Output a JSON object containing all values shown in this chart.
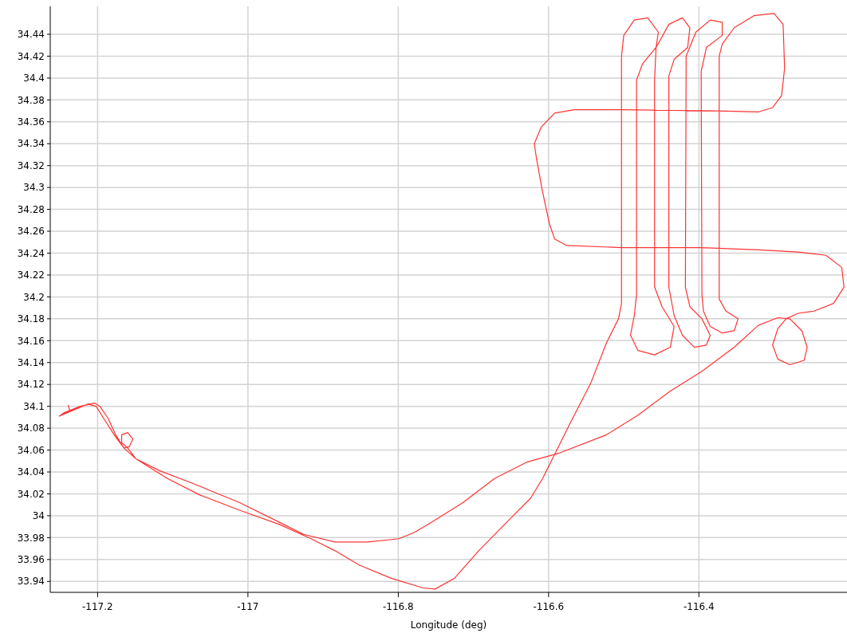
{
  "chart_data": {
    "type": "line",
    "xlabel": "Longitude (deg)",
    "grid": true,
    "xlim": [
      -117.263,
      -116.203
    ],
    "ylim": [
      33.93,
      34.4655
    ],
    "xticks": [
      -117.2,
      -117,
      -116.8,
      -116.6,
      -116.4
    ],
    "yticks": [
      33.94,
      33.96,
      33.98,
      34,
      34.02,
      34.04,
      34.06,
      34.08,
      34.1,
      34.12,
      34.14,
      34.16,
      34.18,
      34.2,
      34.22,
      34.24,
      34.26,
      34.28,
      34.3,
      34.32,
      34.34,
      34.36,
      34.38,
      34.4,
      34.42,
      34.44
    ],
    "series": [
      {
        "color": "#ff3333",
        "line_style": "solid",
        "x": [
          -117.239,
          -117.237,
          -117.249,
          -117.251,
          -117.245,
          -117.223,
          -117.204,
          -117.197,
          -117.186,
          -117.176,
          -117.165,
          -117.149,
          -117.117,
          -117.075,
          -117.011,
          -116.958,
          -116.926,
          -116.884,
          -116.841,
          -116.799,
          -116.778,
          -116.756,
          -116.714,
          -116.672,
          -116.629,
          -116.587,
          -116.523,
          -116.481,
          -116.438,
          -116.396,
          -116.353,
          -116.321,
          -116.295,
          -116.279,
          -116.263,
          -116.256,
          -116.26,
          -116.279,
          -116.295,
          -116.302,
          -116.295,
          -116.284,
          -116.268,
          -116.247,
          -116.221,
          -116.207,
          -116.21,
          -116.231,
          -116.268,
          -116.321,
          -116.396,
          -116.502,
          -116.576,
          -116.592,
          -116.599,
          -116.608,
          -116.616,
          -116.619,
          -116.61,
          -116.592,
          -116.566,
          -116.502,
          -116.374,
          -116.321,
          -116.302,
          -116.29,
          -116.286,
          -116.288,
          -116.3,
          -116.327,
          -116.353,
          -116.369,
          -116.373,
          -116.373,
          -116.364,
          -116.348,
          -116.353,
          -116.369,
          -116.385,
          -116.394,
          -116.396,
          -116.397,
          -116.39,
          -116.369,
          -116.369,
          -116.385,
          -116.404,
          -116.417,
          -116.418,
          -116.412,
          -116.396,
          -116.385,
          -116.39,
          -116.406,
          -116.422,
          -116.433,
          -116.44,
          -116.44,
          -116.433,
          -116.415,
          -116.412,
          -116.422,
          -116.44,
          -116.457,
          -116.459,
          -116.459,
          -116.449,
          -116.433,
          -116.438,
          -116.459,
          -116.481,
          -116.491,
          -116.486,
          -116.483,
          -116.483,
          -116.475,
          -116.457,
          -116.454,
          -116.468,
          -116.486,
          -116.5,
          -116.503,
          -116.503,
          -116.507,
          -116.523,
          -116.544,
          -116.571,
          -116.592,
          -116.608,
          -116.624,
          -116.65,
          -116.693,
          -116.725,
          -116.751,
          -116.767,
          -116.81,
          -116.852,
          -116.884,
          -116.916,
          -116.958,
          -117.011,
          -117.064,
          -117.107,
          -117.149,
          -117.16,
          -117.168,
          -117.168,
          -117.16,
          -117.153,
          -117.158,
          -117.165,
          -117.176,
          -117.192,
          -117.202,
          -117.213,
          -117.234,
          -117.251
        ],
        "values": [
          34.101,
          34.096,
          34.092,
          34.091,
          34.094,
          34.1,
          34.103,
          34.1,
          34.089,
          34.074,
          34.062,
          34.052,
          34.041,
          34.03,
          34.012,
          33.994,
          33.983,
          33.976,
          33.976,
          33.979,
          33.985,
          33.994,
          34.012,
          34.034,
          34.049,
          34.057,
          34.074,
          34.092,
          34.114,
          34.132,
          34.154,
          34.174,
          34.181,
          34.18,
          34.169,
          34.154,
          34.142,
          34.138,
          34.143,
          34.156,
          34.171,
          34.18,
          34.185,
          34.187,
          34.194,
          34.209,
          34.227,
          34.238,
          34.241,
          34.243,
          34.245,
          34.245,
          34.247,
          34.253,
          34.267,
          34.296,
          34.326,
          34.34,
          34.355,
          34.368,
          34.371,
          34.371,
          34.37,
          34.369,
          34.373,
          34.384,
          34.409,
          34.449,
          34.459,
          34.457,
          34.446,
          34.431,
          34.42,
          34.198,
          34.187,
          34.18,
          34.169,
          34.167,
          34.173,
          34.187,
          34.202,
          34.406,
          34.428,
          34.439,
          34.451,
          34.453,
          34.442,
          34.42,
          34.209,
          34.191,
          34.18,
          34.165,
          34.156,
          34.154,
          34.165,
          34.183,
          34.209,
          34.402,
          34.417,
          34.428,
          34.446,
          34.455,
          34.449,
          34.428,
          34.398,
          34.209,
          34.191,
          34.173,
          34.154,
          34.147,
          34.151,
          34.165,
          34.183,
          34.202,
          34.398,
          34.413,
          34.428,
          34.442,
          34.455,
          34.453,
          34.439,
          34.42,
          34.194,
          34.18,
          34.158,
          34.121,
          34.085,
          34.056,
          34.034,
          34.016,
          33.998,
          33.968,
          33.943,
          33.933,
          33.934,
          33.943,
          33.955,
          33.968,
          33.979,
          33.992,
          34.005,
          34.019,
          34.034,
          34.052,
          34.062,
          34.067,
          34.074,
          34.076,
          34.07,
          34.063,
          34.062,
          34.072,
          34.089,
          34.1,
          34.102,
          34.096,
          34.091
        ]
      }
    ]
  }
}
